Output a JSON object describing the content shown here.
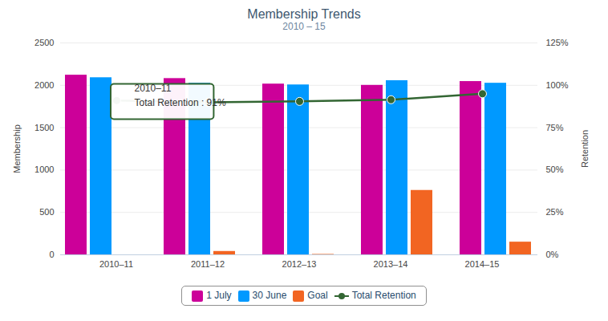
{
  "chart_data": {
    "type": "bar",
    "title": "Membership Trends",
    "subtitle": "2010 – 15",
    "y_label": "Membership",
    "y2_label": "Retention",
    "categories": [
      "2010–11",
      "2011–12",
      "2012–13",
      "2013–14",
      "2014–15"
    ],
    "series": [
      {
        "name": "1 July",
        "color": "#cc0099",
        "values": [
          2120,
          2080,
          2015,
          2000,
          2045
        ]
      },
      {
        "name": "30 June",
        "color": "#0099ff",
        "values": [
          2090,
          2025,
          2005,
          2055,
          2025
        ]
      },
      {
        "name": "Goal",
        "color": "#f26522",
        "values": [
          null,
          40,
          5,
          760,
          150
        ]
      },
      {
        "name": "Total Retention",
        "type": "line",
        "axis": "y2",
        "color": "#336633",
        "marker": "circle",
        "values": [
          91,
          90,
          90.5,
          91.5,
          95
        ]
      }
    ],
    "ylim": [
      0,
      2500
    ],
    "yticks": [
      0,
      500,
      1000,
      1500,
      2000,
      2500
    ],
    "y2lim": [
      0,
      125
    ],
    "y2ticks": [
      {
        "value": 0,
        "label": "0%"
      },
      {
        "value": 25,
        "label": "25%"
      },
      {
        "value": 50,
        "label": "50%"
      },
      {
        "value": 75,
        "label": "75%"
      },
      {
        "value": 100,
        "label": "100%"
      },
      {
        "value": 125,
        "label": "125%"
      }
    ],
    "grid": true,
    "legend": "bottom",
    "annotations": [
      {
        "x": "2010–11",
        "series": "Total Retention",
        "lines": [
          "2010–11",
          "Total Retention : 91%"
        ]
      }
    ]
  }
}
